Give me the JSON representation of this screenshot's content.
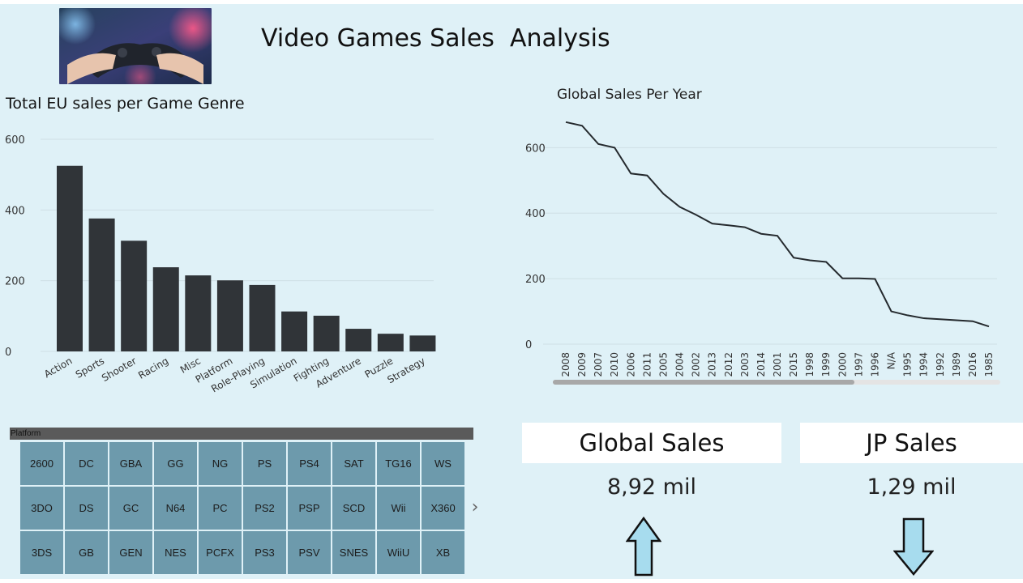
{
  "header": {
    "title": "Video Games Sales  Analysis",
    "hero_image": "gamepad-controller-photo"
  },
  "bar_chart_title": "Total EU sales per Game Genre",
  "line_chart_title": "Global Sales Per Year",
  "chart_data": [
    {
      "type": "bar",
      "title": "Total EU sales per Game Genre",
      "categories": [
        "Action",
        "Sports",
        "Shooter",
        "Racing",
        "Misc",
        "Platform",
        "Role-Playing",
        "Simulation",
        "Fighting",
        "Adventure",
        "Puzzle",
        "Strategy"
      ],
      "values": [
        525,
        376,
        313,
        238,
        215,
        201,
        188,
        113,
        101,
        64,
        50,
        45
      ],
      "yticks": [
        0,
        200,
        400,
        600
      ],
      "ylim": [
        0,
        600
      ],
      "bar_color": "#303438",
      "grid": true
    },
    {
      "type": "line",
      "title": "Global Sales Per Year",
      "x": [
        "2008",
        "2009",
        "2007",
        "2010",
        "2006",
        "2011",
        "2005",
        "2004",
        "2002",
        "2013",
        "2012",
        "2003",
        "2014",
        "2001",
        "2015",
        "1998",
        "1999",
        "2000",
        "1997",
        "1996",
        "N/A",
        "1995",
        "1994",
        "1992",
        "1989",
        "2016",
        "1985"
      ],
      "y": [
        678,
        667,
        611,
        600,
        521,
        515,
        459,
        419,
        395,
        368,
        363,
        357,
        337,
        331,
        264,
        256,
        251,
        201,
        201,
        199,
        100,
        88,
        79,
        76,
        73,
        70,
        54
      ],
      "yticks": [
        0,
        200,
        400,
        600
      ],
      "ylim": [
        0,
        680
      ],
      "line_color": "#252a2e",
      "grid": true
    }
  ],
  "slicer": {
    "header": "Platform",
    "tiles": [
      "2600",
      "DC",
      "GBA",
      "GG",
      "NG",
      "PS",
      "PS4",
      "SAT",
      "TG16",
      "WS",
      "3DO",
      "DS",
      "GC",
      "N64",
      "PC",
      "PS2",
      "PSP",
      "SCD",
      "Wii",
      "X360",
      "3DS",
      "GB",
      "GEN",
      "NES",
      "PCFX",
      "PS3",
      "PSV",
      "SNES",
      "WiiU",
      "XB"
    ],
    "next_icon": "chevron-right-icon"
  },
  "cards": {
    "global": {
      "label": "Global Sales",
      "value": "8,92 mil",
      "trend_icon": "arrow-up-icon"
    },
    "jp": {
      "label": "JP Sales",
      "value": "1,29 mil",
      "trend_icon": "arrow-down-icon"
    }
  },
  "colors": {
    "background": "#dff1f7",
    "bar": "#303438",
    "tile": "#6d9aac",
    "arrow_fill": "#a7dcee"
  }
}
